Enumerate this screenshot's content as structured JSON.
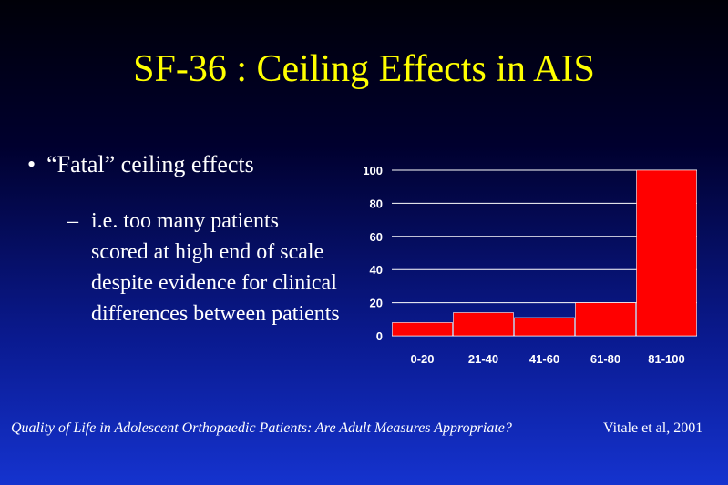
{
  "slide": {
    "title": "SF-36 : Ceiling Effects in AIS",
    "bullet_marker": "•",
    "bullet": "“Fatal” ceiling effects",
    "sub_marker": "–",
    "sub_bullet": "i.e. too many patients scored at high end of scale despite evidence for clinical differences between patients",
    "footer_citation": "Quality of Life in Adolescent Orthopaedic Patients: Are Adult Measures Appropriate?",
    "footer_author": "Vitale et al, 2001"
  },
  "colors": {
    "title": "#ffff00",
    "text": "#ffffff",
    "bar": "#ff0000",
    "gridline": "#ffffff"
  },
  "chart_data": {
    "type": "bar",
    "categories": [
      "0-20",
      "21-40",
      "41-60",
      "61-80",
      "81-100"
    ],
    "values": [
      8,
      14,
      11,
      20,
      100
    ],
    "ylim": [
      0,
      100
    ],
    "yticks": [
      0,
      20,
      40,
      60,
      80,
      100
    ],
    "grid": true,
    "title": "",
    "xlabel": "",
    "ylabel": ""
  }
}
